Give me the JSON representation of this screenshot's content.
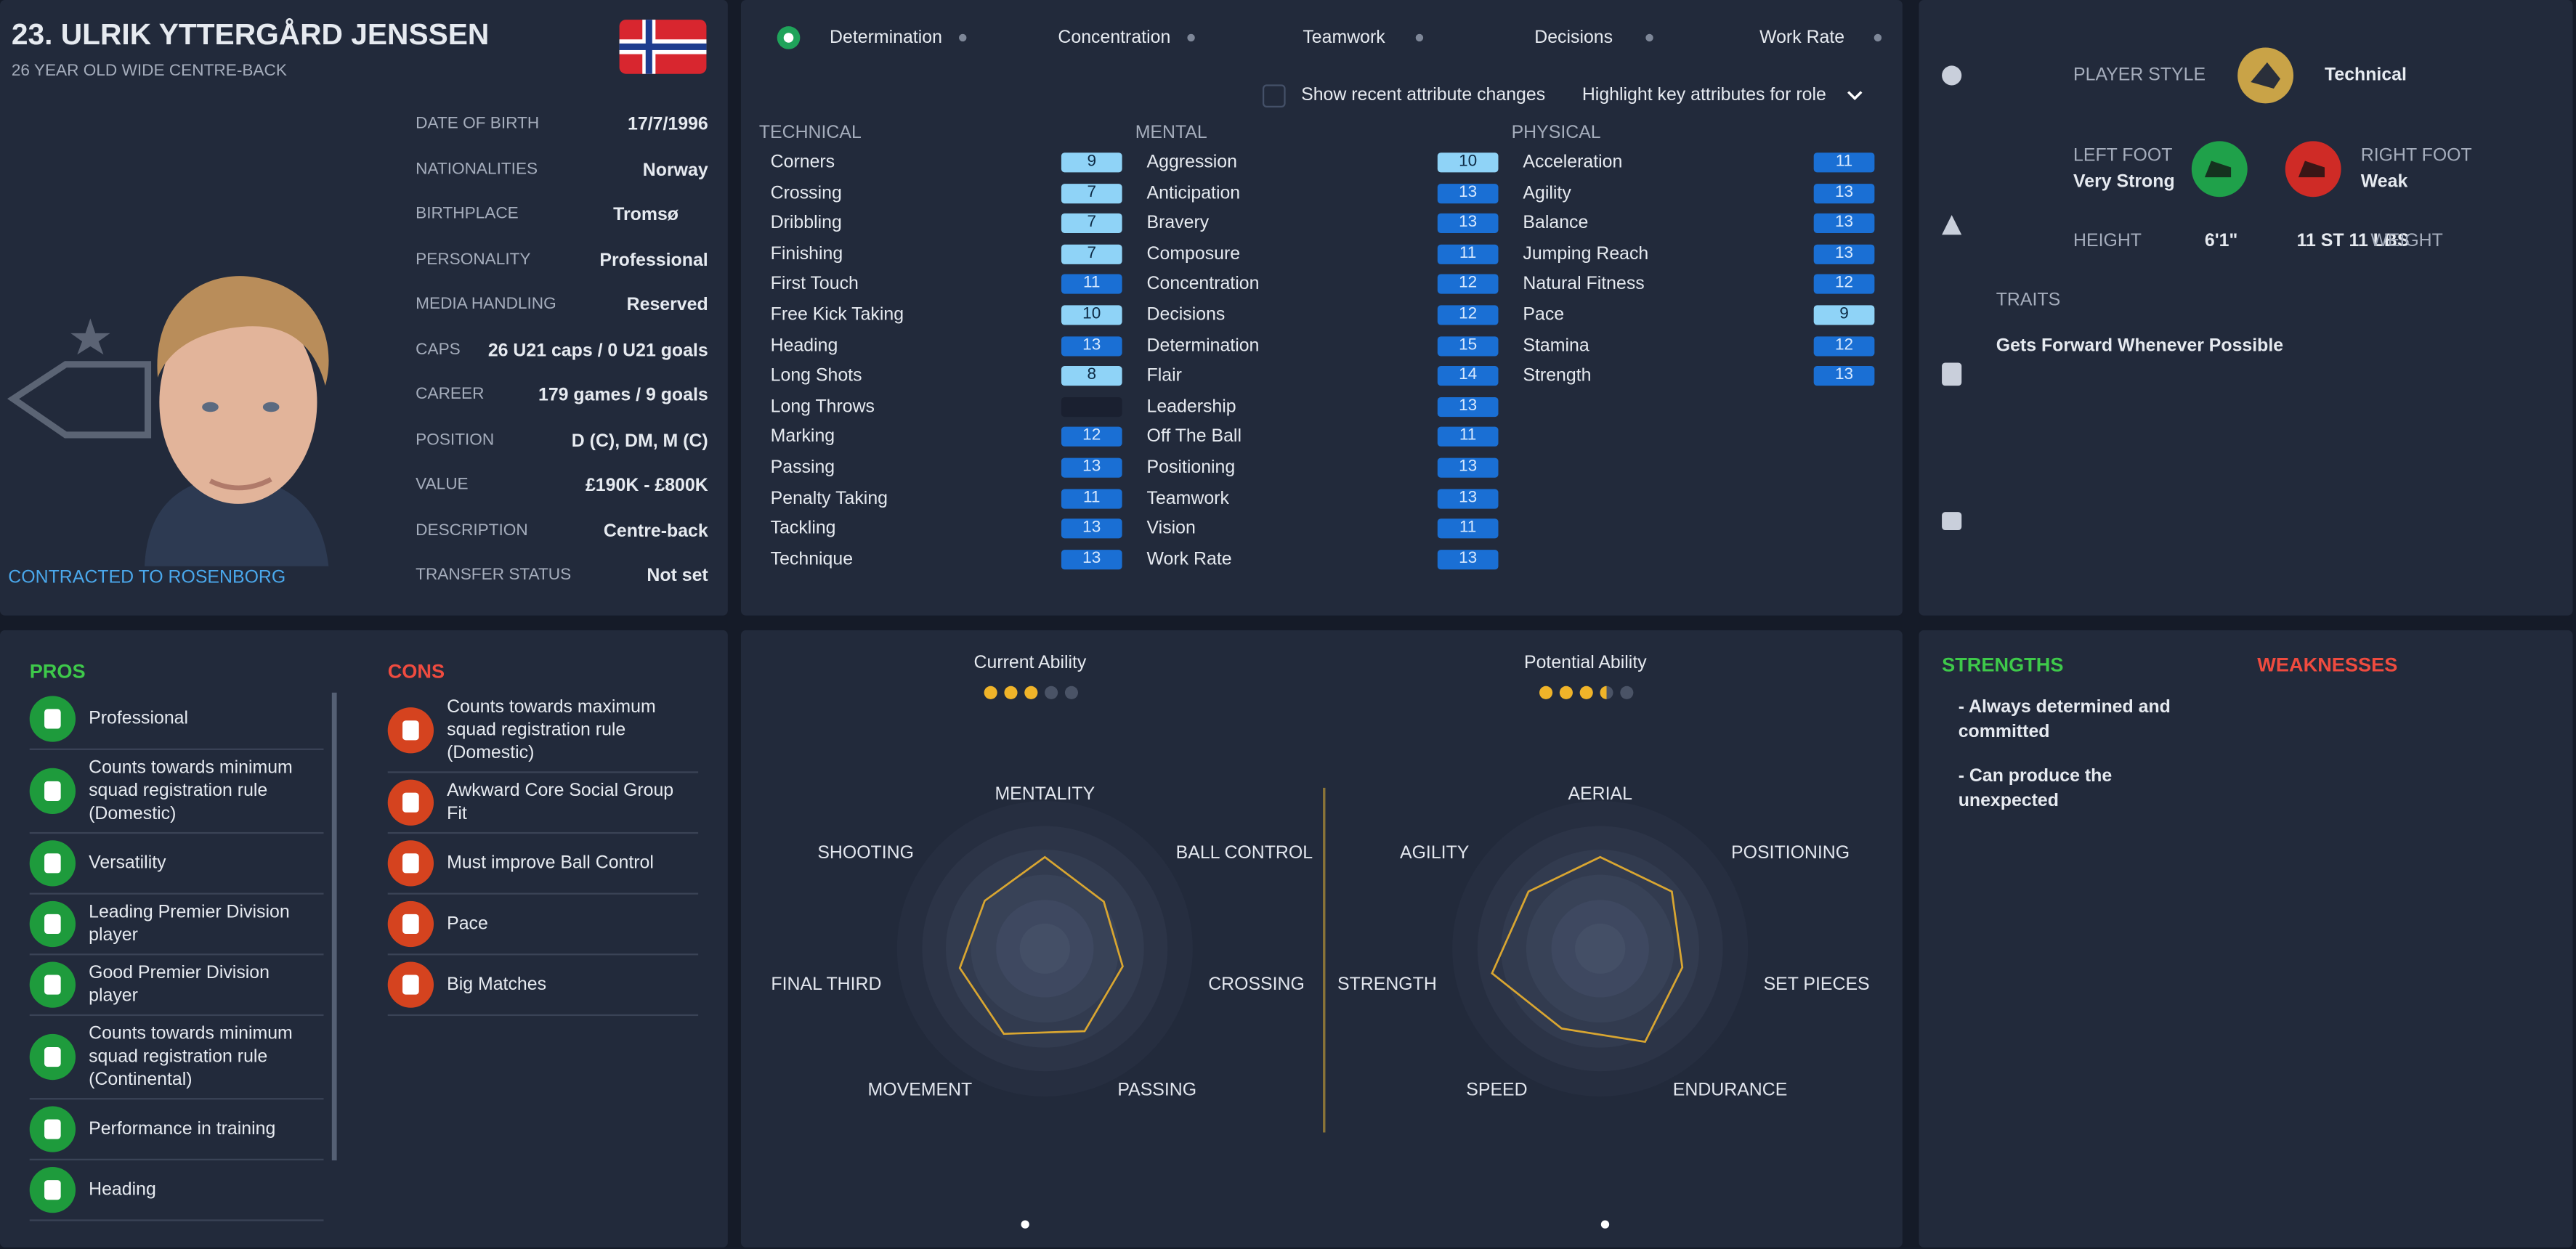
{
  "header": {
    "name": "23. ULRIK YTTERGÅRD JENSSEN",
    "subtitle": "26 YEAR OLD WIDE CENTRE-BACK",
    "contract": "CONTRACTED TO ROSENBORG"
  },
  "details": [
    {
      "label": "DATE OF BIRTH",
      "value": "17/7/1996"
    },
    {
      "label": "NATIONALITIES",
      "value": "Norway"
    },
    {
      "label": "BIRTHPLACE",
      "value": "Tromsø"
    },
    {
      "label": "PERSONALITY",
      "value": "Professional"
    },
    {
      "label": "MEDIA HANDLING",
      "value": "Reserved"
    },
    {
      "label": "CAPS",
      "value": "26 U21 caps / 0 U21 goals"
    },
    {
      "label": "CAREER",
      "value": "179 games / 9 goals"
    },
    {
      "label": "POSITION",
      "value": "D (C), DM, M (C)"
    },
    {
      "label": "VALUE",
      "value": "£190K - £800K"
    },
    {
      "label": "DESCRIPTION",
      "value": "Centre-back"
    },
    {
      "label": "TRANSFER STATUS",
      "value": "Not set"
    }
  ],
  "tabs": [
    "Determination",
    "Concentration",
    "Teamwork",
    "Decisions",
    "Work Rate"
  ],
  "options": {
    "recent": "Show recent attribute changes",
    "highlight": "Highlight key attributes for role"
  },
  "attributes": [
    {
      "title": "TECHNICAL",
      "items": [
        {
          "name": "Corners",
          "value": 9
        },
        {
          "name": "Crossing",
          "value": 7
        },
        {
          "name": "Dribbling",
          "value": 7
        },
        {
          "name": "Finishing",
          "value": 7
        },
        {
          "name": "First Touch",
          "value": 11
        },
        {
          "name": "Free Kick Taking",
          "value": 10
        },
        {
          "name": "Heading",
          "value": 13
        },
        {
          "name": "Long Shots",
          "value": 8
        },
        {
          "name": "Long Throws",
          "value": null
        },
        {
          "name": "Marking",
          "value": 12
        },
        {
          "name": "Passing",
          "value": 13
        },
        {
          "name": "Penalty Taking",
          "value": 11
        },
        {
          "name": "Tackling",
          "value": 13
        },
        {
          "name": "Technique",
          "value": 13
        }
      ]
    },
    {
      "title": "MENTAL",
      "items": [
        {
          "name": "Aggression",
          "value": 10
        },
        {
          "name": "Anticipation",
          "value": 13
        },
        {
          "name": "Bravery",
          "value": 13
        },
        {
          "name": "Composure",
          "value": 11
        },
        {
          "name": "Concentration",
          "value": 12
        },
        {
          "name": "Decisions",
          "value": 12
        },
        {
          "name": "Determination",
          "value": 15
        },
        {
          "name": "Flair",
          "value": 14
        },
        {
          "name": "Leadership",
          "value": 13
        },
        {
          "name": "Off The Ball",
          "value": 11
        },
        {
          "name": "Positioning",
          "value": 13
        },
        {
          "name": "Teamwork",
          "value": 13
        },
        {
          "name": "Vision",
          "value": 11
        },
        {
          "name": "Work Rate",
          "value": 13
        }
      ]
    },
    {
      "title": "PHYSICAL",
      "items": [
        {
          "name": "Acceleration",
          "value": 11
        },
        {
          "name": "Agility",
          "value": 13
        },
        {
          "name": "Balance",
          "value": 13
        },
        {
          "name": "Jumping Reach",
          "value": 13
        },
        {
          "name": "Natural Fitness",
          "value": 12
        },
        {
          "name": "Pace",
          "value": 9
        },
        {
          "name": "Stamina",
          "value": 12
        },
        {
          "name": "Strength",
          "value": 13
        }
      ]
    }
  ],
  "profile": {
    "style_label": "PLAYER STYLE",
    "style": "Technical",
    "left_foot_label": "LEFT FOOT",
    "left_foot": "Very Strong",
    "right_foot_label": "RIGHT FOOT",
    "right_foot": "Weak",
    "height_label": "HEIGHT",
    "height": "6'1\"",
    "weight": "11 ST 11 LBS",
    "weight_label": "WEIGHT",
    "traits_title": "TRAITS",
    "traits": [
      "Gets Forward Whenever Possible"
    ]
  },
  "pros": {
    "title": "PROS",
    "items": [
      "Professional",
      "Counts towards minimum squad registration rule (Domestic)",
      "Versatility",
      "Leading Premier Division player",
      "Good Premier Division player",
      "Counts towards minimum squad registration rule (Continental)",
      "Performance in training",
      "Heading"
    ]
  },
  "cons": {
    "title": "CONS",
    "items": [
      "Counts towards maximum squad registration rule (Domestic)",
      "Awkward Core Social Group Fit",
      "Must improve Ball Control",
      "Pace",
      "Big Matches"
    ]
  },
  "ability": [
    {
      "title": "Current Ability",
      "rating": 3,
      "rating_max": 5,
      "rlim": [
        0,
        100
      ],
      "axes": [
        "MENTALITY",
        "BALL CONTROL",
        "CROSSING",
        "PASSING",
        "MOVEMENT",
        "FINAL THIRD",
        "SHOOTING"
      ],
      "values": [
        62,
        51,
        54,
        62,
        64,
        59,
        52
      ]
    },
    {
      "title": "Potential Ability",
      "rating": 3.5,
      "rating_max": 5,
      "rlim": [
        0,
        100
      ],
      "axes": [
        "AERIAL",
        "POSITIONING",
        "SET PIECES",
        "ENDURANCE",
        "SPEED",
        "STRENGTH",
        "AGILITY"
      ],
      "values": [
        62,
        62,
        57,
        70,
        60,
        75,
        62
      ]
    }
  ],
  "strengths": {
    "title": "STRENGTHS",
    "items": [
      "- Always determined and committed",
      "- Can produce the unexpected"
    ]
  },
  "weaknesses": {
    "title": "WEAKNESSES"
  }
}
